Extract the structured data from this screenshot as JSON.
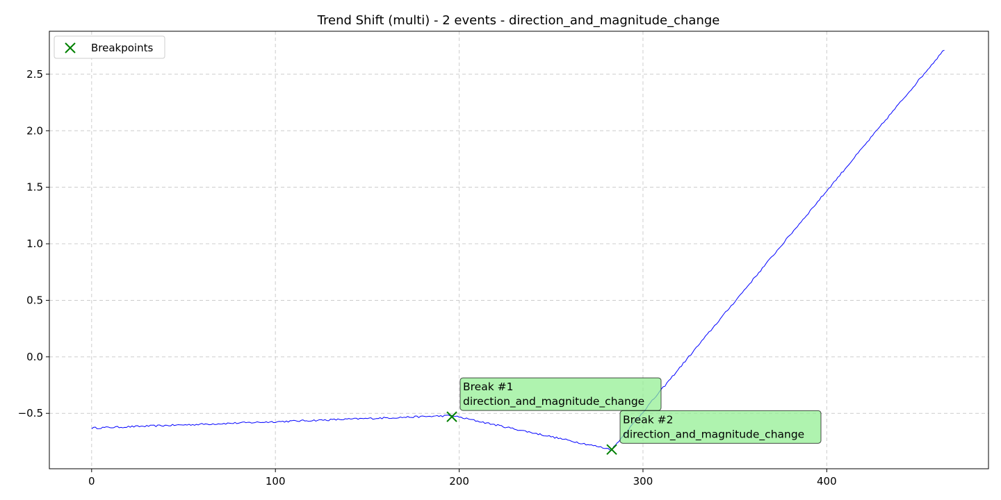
{
  "chart_data": {
    "type": "line",
    "title": "Trend Shift (multi) - 2 events - direction_and_magnitude_change",
    "xlabel": "",
    "ylabel": "",
    "xlim": [
      -23,
      488
    ],
    "ylim": [
      -0.99,
      2.88
    ],
    "xticks": [
      0,
      100,
      200,
      300,
      400
    ],
    "yticks": [
      -0.5,
      0.0,
      0.5,
      1.0,
      1.5,
      2.0,
      2.5
    ],
    "ytick_labels": [
      "−0.5",
      "0.0",
      "0.5",
      "1.0",
      "1.5",
      "2.0",
      "2.5"
    ],
    "grid": true,
    "legend_position": "top-left",
    "series": [
      {
        "color": "#0000ff",
        "segments": [
          {
            "x_start": 0,
            "x_end": 196,
            "y_start": -0.63,
            "y_end": -0.52
          },
          {
            "x_start": 196,
            "x_end": 283,
            "y_start": -0.52,
            "y_end": -0.82
          },
          {
            "x_start": 283,
            "x_end": 464,
            "y_start": -0.82,
            "y_end": 2.72
          }
        ],
        "noise_amplitude": 0.008
      }
    ],
    "breakpoints": {
      "legend_label": "Breakpoints",
      "color": "#008000",
      "points": [
        {
          "x": 196,
          "y": -0.53,
          "label_line1": "Break #1",
          "label_line2": "direction_and_magnitude_change"
        },
        {
          "x": 283,
          "y": -0.82,
          "label_line1": "Break #2",
          "label_line2": "direction_and_magnitude_change"
        }
      ]
    }
  }
}
